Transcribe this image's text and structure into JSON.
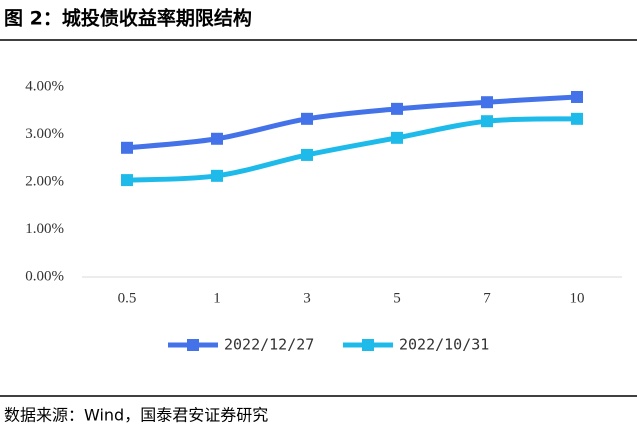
{
  "chart_data": {
    "type": "line",
    "title": "图 2：城投债收益率期限结构",
    "source": "数据来源：Wind，国泰君安证券研究",
    "categories": [
      "0.5",
      "1",
      "3",
      "5",
      "7",
      "10"
    ],
    "series": [
      {
        "name": "2022/12/27",
        "color": "#4472e8",
        "values": [
          2.72,
          2.91,
          3.33,
          3.54,
          3.68,
          3.79
        ]
      },
      {
        "name": "2022/10/31",
        "color": "#1ebbea",
        "values": [
          2.04,
          2.13,
          2.57,
          2.93,
          3.28,
          3.33
        ]
      }
    ],
    "ylim": [
      0,
      4
    ],
    "yticks": [
      {
        "value": 0,
        "label": "0.00%"
      },
      {
        "value": 1,
        "label": "1.00%"
      },
      {
        "value": 2,
        "label": "2.00%"
      },
      {
        "value": 3,
        "label": "3.00%"
      },
      {
        "value": 4,
        "label": "4.00%"
      }
    ],
    "grid": false,
    "legend": "bottom"
  }
}
